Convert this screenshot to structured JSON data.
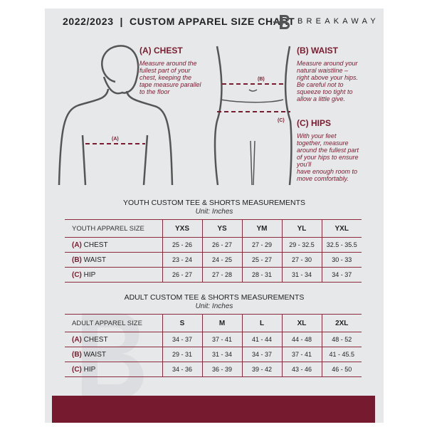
{
  "header": {
    "title": "2022/2023  |  CUSTOM APPAREL SIZE CHART",
    "brand": "BREAKAWAY",
    "logo_letter": "B"
  },
  "guide": {
    "chest": {
      "heading": "(A) CHEST",
      "marker": "(A)",
      "text": [
        "Measure around the",
        "fullest part of your",
        "chest, keeping the",
        "tape measure parallel",
        "to the floor"
      ]
    },
    "waist": {
      "heading": "(B) WAIST",
      "marker": "(B)",
      "text": [
        "Measure around your",
        "natural waistline –",
        "right above your hips.",
        "Be careful not to",
        "squeeze too tight to",
        "allow a little give."
      ]
    },
    "hips": {
      "heading": "(C) HIPS",
      "marker": "(C)",
      "text": [
        "With your feet",
        "together, measure",
        "around the fullest part",
        "of your hips to ensure",
        "you'll",
        "have enough room to",
        "move comfortably."
      ]
    }
  },
  "youth": {
    "title": "YOUTH CUSTOM TEE & SHORTS MEASUREMENTS",
    "unit": "Unit: Inches",
    "header": "YOUTH APPAREL SIZE",
    "sizes": [
      "YXS",
      "YS",
      "YM",
      "YL",
      "YXL"
    ],
    "rows": [
      {
        "letter": "(A)",
        "label": "CHEST",
        "values": [
          "25 - 26",
          "26 - 27",
          "27 - 29",
          "29 - 32.5",
          "32.5 - 35.5"
        ]
      },
      {
        "letter": "(B)",
        "label": "WAIST",
        "values": [
          "23 - 24",
          "24 - 25",
          "25 - 27",
          "27 - 30",
          "30 - 33"
        ]
      },
      {
        "letter": "(C)",
        "label": "HIP",
        "values": [
          "26 - 27",
          "27 - 28",
          "28 - 31",
          "31 - 34",
          "34 - 37"
        ]
      }
    ]
  },
  "adult": {
    "title": "ADULT CUSTOM TEE & SHORTS MEASUREMENTS",
    "unit": "Unit: Inches",
    "header": "ADULT APPAREL SIZE",
    "sizes": [
      "S",
      "M",
      "L",
      "XL",
      "2XL"
    ],
    "rows": [
      {
        "letter": "(A)",
        "label": "CHEST",
        "values": [
          "34 - 37",
          "37 - 41",
          "41 - 44",
          "44 - 48",
          "48 - 52"
        ]
      },
      {
        "letter": "(B)",
        "label": "WAIST",
        "values": [
          "29 - 31",
          "31 - 34",
          "34 - 37",
          "37 - 41",
          "41 - 45.5"
        ]
      },
      {
        "letter": "(C)",
        "label": "HIP",
        "values": [
          "34 - 36",
          "36 - 39",
          "39 - 42",
          "43 - 46",
          "46 - 50"
        ]
      }
    ]
  },
  "colors": {
    "accent": "#761a30",
    "background": "#e7e8ea"
  }
}
